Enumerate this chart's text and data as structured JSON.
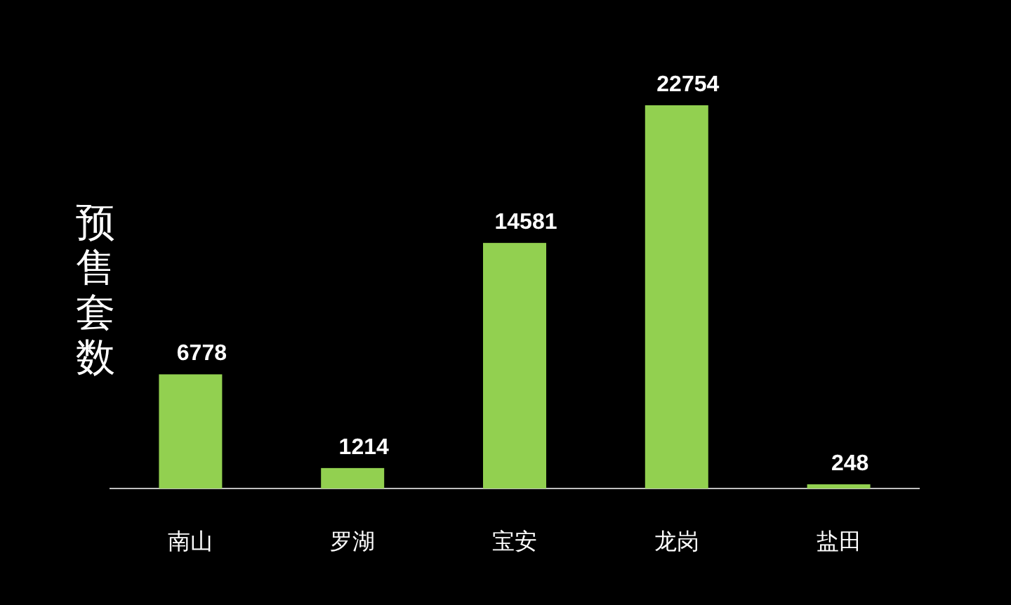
{
  "chart_data": {
    "type": "bar",
    "ylabel": "预售套数",
    "categories": [
      "南山",
      "罗湖",
      "宝安",
      "龙岗",
      "盐田"
    ],
    "values": [
      6778,
      1214,
      14581,
      22754,
      248
    ],
    "color": "#92d050",
    "data_labels": true
  }
}
